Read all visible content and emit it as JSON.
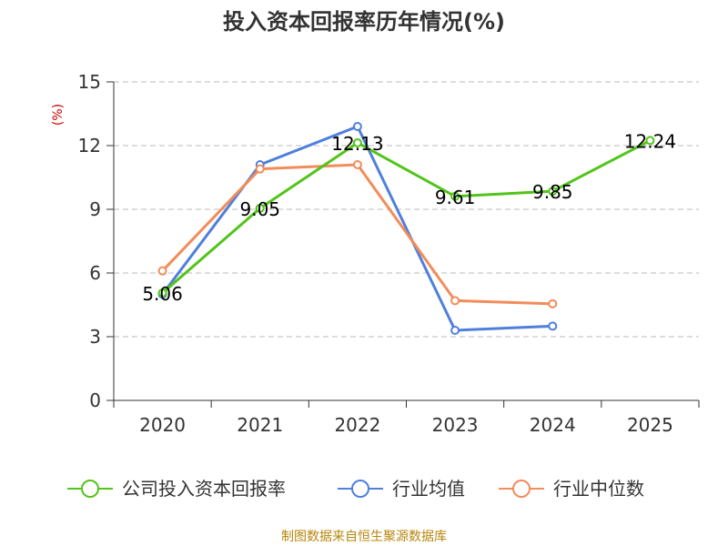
{
  "chart_data": {
    "type": "line",
    "title": "投入资本回报率历年情况(%)",
    "ylabel": "(%)",
    "xlabel": "",
    "categories": [
      "2020",
      "2021",
      "2022",
      "2023",
      "2024",
      "2025"
    ],
    "yticks": [
      "0",
      "3",
      "6",
      "9",
      "12",
      "15"
    ],
    "ylim": [
      0,
      15
    ],
    "grid": true,
    "legend_position": "bottom",
    "series": [
      {
        "name": "公司投入资本回报率",
        "color": "#52c41a",
        "values": [
          5.06,
          9.05,
          12.13,
          9.61,
          9.85,
          12.24
        ],
        "labels": [
          "5.06",
          "9.05",
          "12.13",
          "9.61",
          "9.85",
          "12.24"
        ]
      },
      {
        "name": "行业均值",
        "color": "#4f7fdc",
        "values": [
          5.0,
          11.1,
          12.9,
          3.3,
          3.5,
          null
        ]
      },
      {
        "name": "行业中位数",
        "color": "#f28c5a",
        "values": [
          6.1,
          10.9,
          11.1,
          4.7,
          4.55,
          null
        ]
      }
    ],
    "source": "制图数据来自恒生聚源数据库"
  }
}
